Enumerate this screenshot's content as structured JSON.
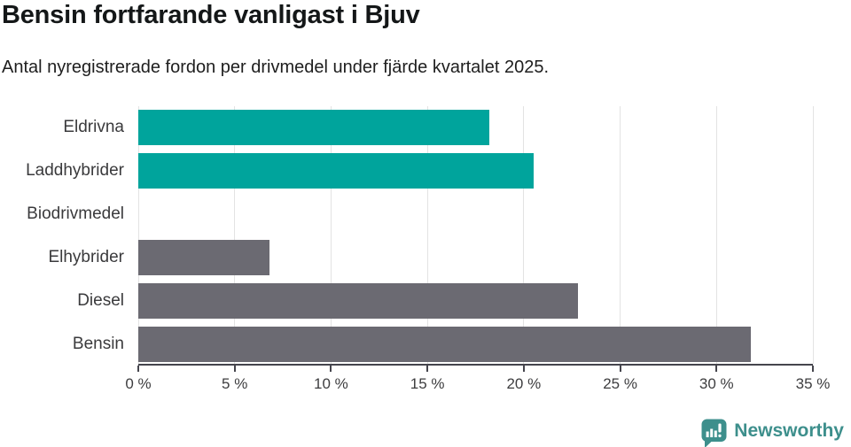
{
  "header": {
    "title": "Bensin fortfarande vanligast i Bjuv",
    "subtitle": "Antal nyregistrerade fordon per drivmedel under fjärde kvartalet 2025."
  },
  "chart_data": {
    "type": "bar",
    "orientation": "horizontal",
    "title": "Bensin fortfarande vanligast i Bjuv",
    "subtitle": "Antal nyregistrerade fordon per drivmedel under fjärde kvartalet 2025.",
    "categories": [
      "Eldrivna",
      "Laddhybrider",
      "Biodrivmedel",
      "Elhybrider",
      "Diesel",
      "Bensin"
    ],
    "values": [
      18.2,
      20.5,
      0,
      6.8,
      22.8,
      31.8
    ],
    "unit": "%",
    "xlim": [
      0,
      35
    ],
    "x_ticks": [
      0,
      5,
      10,
      15,
      20,
      25,
      30,
      35
    ],
    "x_tick_labels": [
      "0 %",
      "5 %",
      "10 %",
      "15 %",
      "20 %",
      "25 %",
      "30 %",
      "35 %"
    ],
    "grid": true,
    "legend": false,
    "bar_colors": [
      "#00a49c",
      "#00a49c",
      "#00a49c",
      "#6b6a72",
      "#6b6a72",
      "#6b6a72"
    ],
    "colors": {
      "teal_series": "#00a49c",
      "gray_series": "#6b6a72",
      "gridline": "#e3e3e3",
      "axis": "#45454d"
    }
  },
  "footer": {
    "brand": "Newsworthy",
    "brand_color": "#3d8f8c",
    "logo_icon": "speech-bubble-bar-chart-icon"
  }
}
